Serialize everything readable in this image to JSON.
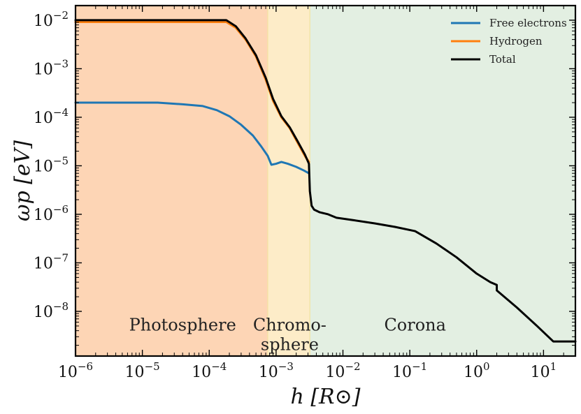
{
  "chart_data": {
    "type": "line",
    "title": "",
    "xlabel": "h [R⊙]",
    "ylabel": "ωp [eV]",
    "xscale": "log",
    "yscale": "log",
    "xlim": [
      1e-06,
      30
    ],
    "ylim": [
      1.2e-09,
      0.02
    ],
    "grid": false,
    "legend_position": "top-right",
    "x_ticks": [
      {
        "base": "10",
        "exp": "−6",
        "value": 1e-06
      },
      {
        "base": "10",
        "exp": "−5",
        "value": 1e-05
      },
      {
        "base": "10",
        "exp": "−4",
        "value": 0.0001
      },
      {
        "base": "10",
        "exp": "−3",
        "value": 0.001
      },
      {
        "base": "10",
        "exp": "−2",
        "value": 0.01
      },
      {
        "base": "10",
        "exp": "−1",
        "value": 0.1
      },
      {
        "base": "10",
        "exp": "0",
        "value": 1
      },
      {
        "base": "10",
        "exp": "1",
        "value": 10
      }
    ],
    "y_ticks": [
      {
        "base": "10",
        "exp": "−8",
        "value": 1e-08
      },
      {
        "base": "10",
        "exp": "−7",
        "value": 1e-07
      },
      {
        "base": "10",
        "exp": "−6",
        "value": 1e-06
      },
      {
        "base": "10",
        "exp": "−5",
        "value": 1e-05
      },
      {
        "base": "10",
        "exp": "−4",
        "value": 0.0001
      },
      {
        "base": "10",
        "exp": "−3",
        "value": 0.001
      },
      {
        "base": "10",
        "exp": "−2",
        "value": 0.01
      }
    ],
    "regions": [
      {
        "name": "Photosphere",
        "label_lines": [
          "Photosphere"
        ],
        "x_start": 1e-06,
        "x_end": 0.00075,
        "color": "#fdd5b5",
        "label_x": 4e-05,
        "label_y": 5e-09
      },
      {
        "name": "Chromosphere",
        "label_lines": [
          "Chromo-",
          "sphere"
        ],
        "x_start": 0.00075,
        "x_end": 0.0032,
        "color": "#fdecc8",
        "label_x": 0.0016,
        "label_y": 5e-09
      },
      {
        "name": "Corona",
        "label_lines": [
          "Corona"
        ],
        "x_start": 0.0032,
        "x_end": 30,
        "color": "#e3efe2",
        "label_x": 0.12,
        "label_y": 5e-09
      }
    ],
    "series": [
      {
        "name": "Free electrons",
        "color": "#1f77b4",
        "x": [
          1e-06,
          1e-05,
          1.7e-05,
          4e-05,
          8e-05,
          0.00013,
          0.0002,
          0.0003,
          0.00045,
          0.0006,
          0.00075,
          0.00085,
          0.001,
          0.0012,
          0.0015,
          0.002,
          0.0026,
          0.0031
        ],
        "values": [
          0.0002,
          0.0002,
          0.0002,
          0.000185,
          0.00017,
          0.00014,
          0.000105,
          7e-05,
          4.2e-05,
          2.5e-05,
          1.6e-05,
          1.05e-05,
          1.1e-05,
          1.2e-05,
          1.1e-05,
          9.5e-06,
          8e-06,
          7e-06
        ]
      },
      {
        "name": "Hydrogen",
        "color": "#ff7f0e",
        "x": [
          1e-06,
          1e-05,
          0.0001,
          0.00018,
          0.00025,
          0.00035,
          0.0005,
          0.0007,
          0.0009,
          0.0012,
          0.0016,
          0.0021,
          0.0027,
          0.0031
        ],
        "values": [
          0.0092,
          0.0092,
          0.0092,
          0.0092,
          0.007,
          0.004,
          0.0018,
          0.0006,
          0.00022,
          0.0001,
          6e-05,
          3e-05,
          1.6e-05,
          1.2e-05
        ]
      },
      {
        "name": "Total",
        "color": "#000000",
        "x": [
          1e-06,
          1e-05,
          0.0001,
          0.00018,
          0.00025,
          0.00035,
          0.0005,
          0.0007,
          0.0009,
          0.0012,
          0.0016,
          0.0021,
          0.0027,
          0.0031,
          0.0032,
          0.0034,
          0.0037,
          0.0045,
          0.006,
          0.008,
          0.015,
          0.03,
          0.06,
          0.12,
          0.25,
          0.5,
          1.0,
          1.6,
          2.0,
          2.0,
          4.0,
          8.0,
          14,
          20,
          30
        ],
        "values": [
          0.01,
          0.01,
          0.01,
          0.01,
          0.0075,
          0.0042,
          0.0019,
          0.00065,
          0.00024,
          0.000105,
          6.2e-05,
          3.2e-05,
          1.7e-05,
          1.1e-05,
          3e-06,
          1.5e-06,
          1.25e-06,
          1.1e-06,
          1e-06,
          8.5e-07,
          7.5e-07,
          6.5e-07,
          5.5e-07,
          4.5e-07,
          2.5e-07,
          1.3e-07,
          6e-08,
          4e-08,
          3.5e-08,
          2.7e-08,
          1.2e-08,
          5e-09,
          2.4e-09,
          2.4e-09,
          2.4e-09
        ]
      }
    ]
  }
}
